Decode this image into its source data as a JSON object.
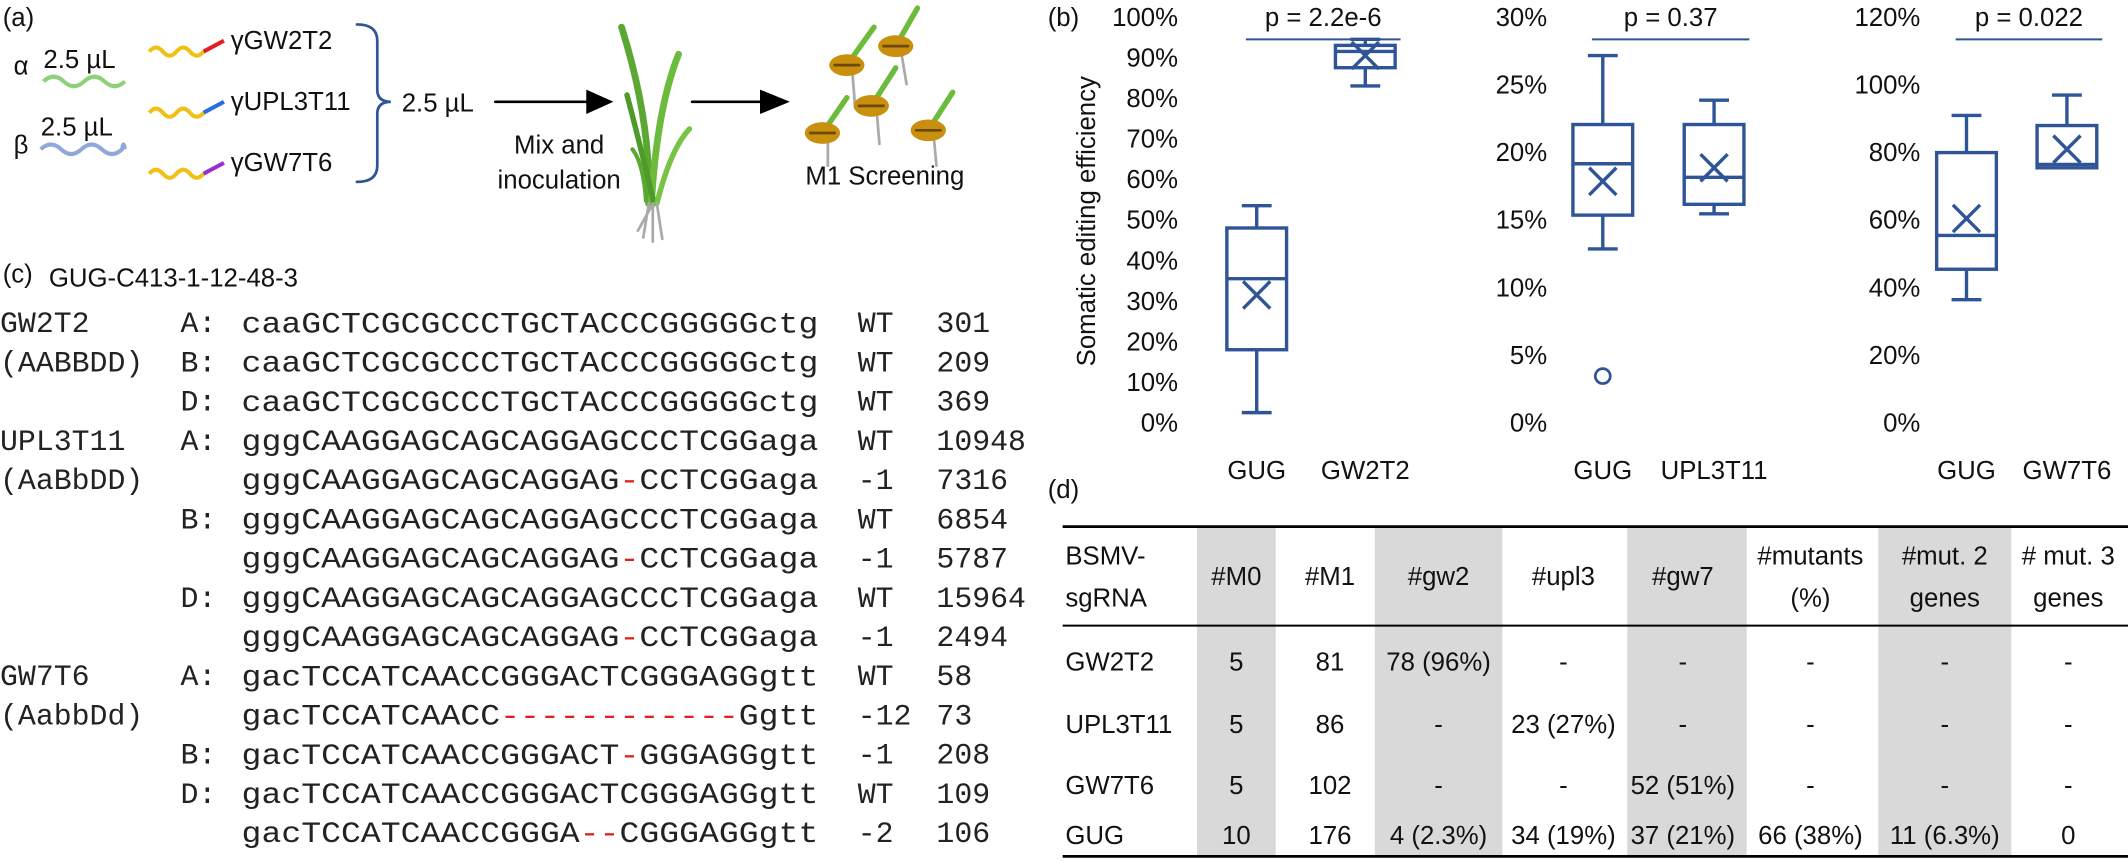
{
  "labels": [
    "(a)",
    "(b)",
    "(c)",
    "(d)"
  ],
  "panel_a": {
    "viruses": [
      "α",
      "β"
    ],
    "volumes": [
      "2.5 µL",
      "2.5 µL",
      "2.5 µL"
    ],
    "sgrnas": [
      "γGW2T2",
      "γUPL3T11",
      "γGW7T6"
    ],
    "sgrna_colors": [
      "#e02020",
      "#2a6fd6",
      "#9a2fd0"
    ],
    "step1": [
      "Mix and",
      "inoculation"
    ],
    "step2": "M1 Screening"
  },
  "chart_data": [
    {
      "type": "box",
      "ylabel": "Somatic editing efficiency",
      "annotation": "p = 2.2e-6",
      "color": "#2f5597",
      "categories": [
        "GUG",
        "GW2T2"
      ],
      "stats": [
        {
          "min": 3,
          "q1": 18.5,
          "median": 36,
          "q3": 48.5,
          "max": 54,
          "mean": 32
        },
        {
          "min": 83.5,
          "q1": 88,
          "median": 92,
          "q3": 93.5,
          "max": 95,
          "mean": 91
        }
      ],
      "ylim": [
        0,
        100
      ],
      "yticks": [
        {
          "value": 0,
          "label": "0%"
        },
        {
          "value": 10,
          "label": "10%"
        },
        {
          "value": 20,
          "label": "20%"
        },
        {
          "value": 30,
          "label": "30%"
        },
        {
          "value": 40,
          "label": "40%"
        },
        {
          "value": 50,
          "label": "50%"
        },
        {
          "value": 60,
          "label": "60%"
        },
        {
          "value": 70,
          "label": "70%"
        },
        {
          "value": 80,
          "label": "80%"
        },
        {
          "value": 90,
          "label": "90%"
        },
        {
          "value": 100,
          "label": "100%"
        }
      ]
    },
    {
      "type": "box",
      "annotation": "p = 0.37",
      "color": "#2f5597",
      "categories": [
        "GUG",
        "UPL3T11"
      ],
      "stats": [
        {
          "min": 13,
          "q1": 15.5,
          "median": 19.3,
          "q3": 22.2,
          "max": 27.3,
          "mean": 18,
          "outliers": [
            3.6
          ]
        },
        {
          "min": 15.6,
          "q1": 16.3,
          "median": 18.3,
          "q3": 22.2,
          "max": 24,
          "mean": 19
        }
      ],
      "ylim": [
        0,
        30
      ],
      "yticks": [
        {
          "value": 0,
          "label": "0%"
        },
        {
          "value": 5,
          "label": "5%"
        },
        {
          "value": 10,
          "label": "10%"
        },
        {
          "value": 15,
          "label": "15%"
        },
        {
          "value": 20,
          "label": "20%"
        },
        {
          "value": 25,
          "label": "25%"
        },
        {
          "value": 30,
          "label": "30%"
        }
      ]
    },
    {
      "type": "box",
      "annotation": "p = 0.022",
      "color": "#2f5597",
      "categories": [
        "GUG",
        "GW7T6"
      ],
      "stats": [
        {
          "min": 37,
          "q1": 46,
          "median": 56,
          "q3": 80.5,
          "max": 91.5,
          "mean": 61
        },
        {
          "min": 76,
          "q1": 76,
          "median": 77,
          "q3": 88.5,
          "max": 97.5,
          "mean": 81.5
        }
      ],
      "ylim": [
        0,
        120
      ],
      "yticks": [
        {
          "value": 0,
          "label": "0%"
        },
        {
          "value": 20,
          "label": "20%"
        },
        {
          "value": 40,
          "label": "40%"
        },
        {
          "value": 60,
          "label": "60%"
        },
        {
          "value": 80,
          "label": "80%"
        },
        {
          "value": 100,
          "label": "100%"
        },
        {
          "value": 120,
          "label": "120%"
        }
      ]
    }
  ],
  "panel_c": {
    "title": "GUG-C413-1-12-48-3",
    "rows": [
      {
        "label": "GW2T2",
        "allele": "A:",
        "seq": "caaGCTCGCGCCCTGCTACCCGGGGGctg",
        "type": "WT",
        "count": 301
      },
      {
        "label": "(AABBDD)",
        "allele": "B:",
        "seq": "caaGCTCGCGCCCTGCTACCCGGGGGctg",
        "type": "WT",
        "count": 209
      },
      {
        "allele": "D:",
        "seq": "caaGCTCGCGCCCTGCTACCCGGGGGctg",
        "type": "WT",
        "count": 369
      },
      {
        "label": "UPL3T11",
        "allele": "A:",
        "seq": "gggCAAGGAGCAGCAGGAGCCCTCGGaga",
        "type": "WT",
        "count": 10948
      },
      {
        "label": "(AaBbDD)",
        "seq": "gggCAAGGAGCAGCAGGAG-CCTCGGaga",
        "type": "-1",
        "count": 7316
      },
      {
        "allele": "B:",
        "seq": "gggCAAGGAGCAGCAGGAGCCCTCGGaga",
        "type": "WT",
        "count": 6854
      },
      {
        "seq": "gggCAAGGAGCAGCAGGAG-CCTCGGaga",
        "type": "-1",
        "count": 5787
      },
      {
        "allele": "D:",
        "seq": "gggCAAGGAGCAGCAGGAGCCCTCGGaga",
        "type": "WT",
        "count": 15964
      },
      {
        "seq": "gggCAAGGAGCAGCAGGAG-CCTCGGaga",
        "type": "-1",
        "count": 2494
      },
      {
        "label": "GW7T6",
        "allele": "A:",
        "seq": "gacTCCATCAACCGGGACTCGGGAGGgtt",
        "type": "WT",
        "count": 58
      },
      {
        "label": "(AabbDd)",
        "seq": "gacTCCATCAACC------------Ggtt",
        "type": "-12",
        "count": 73
      },
      {
        "allele": "B:",
        "seq": "gacTCCATCAACCGGGACT-GGGAGGgtt",
        "type": "-1",
        "count": 208
      },
      {
        "allele": "D:",
        "seq": "gacTCCATCAACCGGGACTCGGGAGGgtt",
        "type": "WT",
        "count": 109
      },
      {
        "seq": "gacTCCATCAACCGGGA--CGGGAGGgtt",
        "type": "-2",
        "count": 106
      }
    ]
  },
  "table": {
    "header": [
      [
        "BSMV-",
        "sgRNA"
      ],
      [
        "#M0"
      ],
      [
        "#M1"
      ],
      [
        "#gw2"
      ],
      [
        "#upl3"
      ],
      [
        "#gw7"
      ],
      [
        "#mutants",
        "(%)"
      ],
      [
        "#mut. 2",
        "genes"
      ],
      [
        "# mut. 3",
        "genes"
      ]
    ],
    "shaded_columns": [
      1,
      3,
      5,
      7
    ],
    "rows": [
      [
        "GW2T2",
        "5",
        "81",
        "78 (96%)",
        "-",
        "-",
        "-",
        "-",
        "-"
      ],
      [
        "UPL3T11",
        "5",
        "86",
        "-",
        "23 (27%)",
        "-",
        "-",
        "-",
        "-"
      ],
      [
        "GW7T6",
        "5",
        "102",
        "-",
        "-",
        "52 (51%)",
        "-",
        "-",
        "-"
      ],
      [
        "GUG",
        "10",
        "176",
        "4 (2.3%)",
        "34 (19%)",
        "37 (21%)",
        "66 (38%)",
        "11 (6.3%)",
        "0"
      ]
    ]
  }
}
